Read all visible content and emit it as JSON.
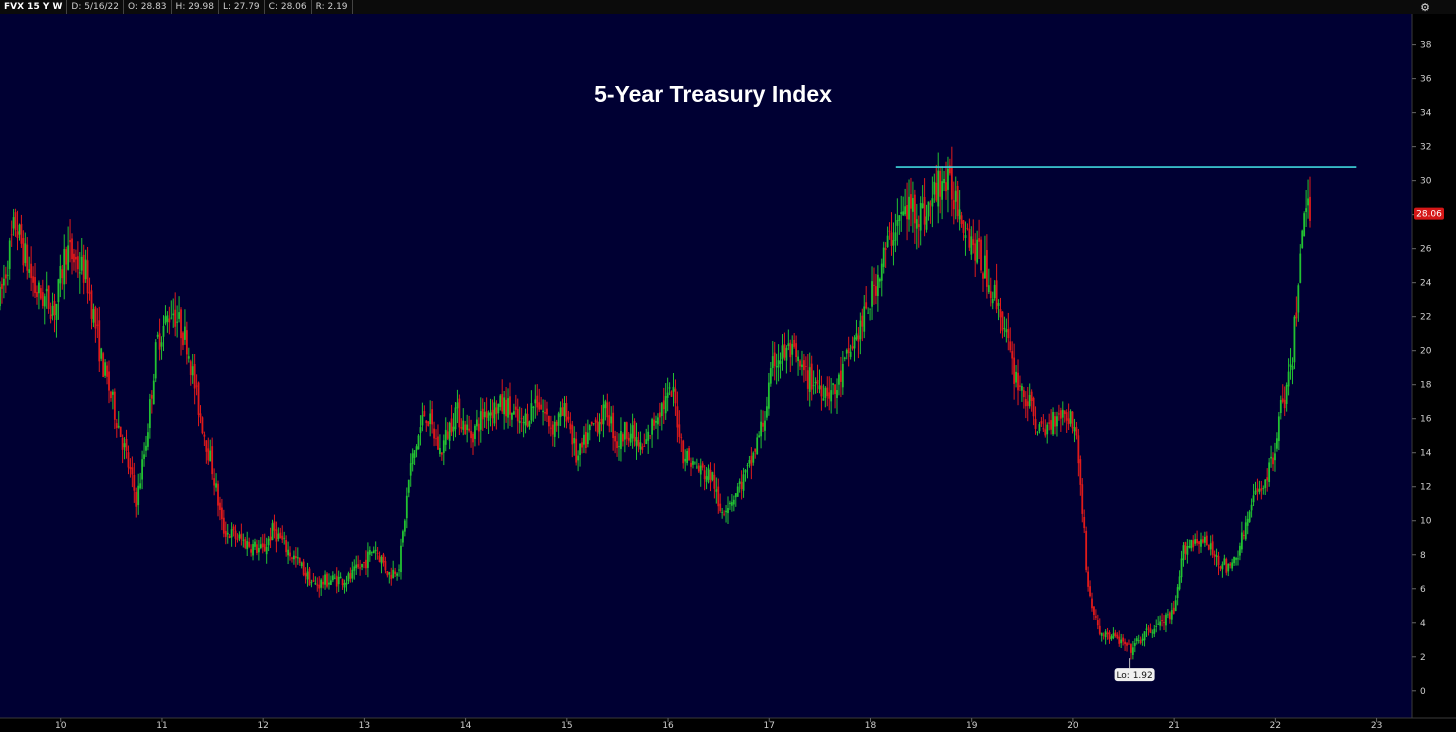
{
  "header": {
    "symbol": "FVX 15 Y W",
    "date": "D: 5/16/22",
    "open": "O: 28.83",
    "high": "H: 29.98",
    "low": "L: 27.79",
    "close": "C: 28.06",
    "range": "R: 2.19",
    "settings_icon": "gear-icon"
  },
  "colors": {
    "plot_bg": "#000033",
    "up": "#22c232",
    "down": "#e01a1a",
    "resistance": "#3fd6dc",
    "price_badge": "#d51717"
  },
  "chart_data": {
    "type": "candlestick",
    "title": "5-Year Treasury Index",
    "xlabel": "",
    "ylabel": "",
    "x_ticks": [
      "10",
      "11",
      "12",
      "13",
      "14",
      "15",
      "16",
      "17",
      "18",
      "19",
      "20",
      "21",
      "22",
      "23"
    ],
    "y_ticks": [
      "0",
      "2",
      "4",
      "6",
      "8",
      "10",
      "12",
      "14",
      "16",
      "18",
      "20",
      "22",
      "24",
      "26",
      "28",
      "30",
      "32",
      "34",
      "36",
      "38"
    ],
    "xlim": [
      2009.4,
      2023.35
    ],
    "ylim": [
      -1.6,
      39.8
    ],
    "last_price": "28.06",
    "low_label": "Lo: 1.92",
    "low_point": {
      "x": 2020.56,
      "y": 1.92
    },
    "resistance": {
      "x_start": 2018.25,
      "x_end": 2022.8,
      "y": 30.8
    },
    "price_path": [
      [
        2009.4,
        23
      ],
      [
        2009.55,
        27.5
      ],
      [
        2009.75,
        23.5
      ],
      [
        2009.95,
        22.5
      ],
      [
        2010.05,
        26
      ],
      [
        2010.25,
        24.5
      ],
      [
        2010.4,
        19.5
      ],
      [
        2010.6,
        15
      ],
      [
        2010.75,
        11.2
      ],
      [
        2010.85,
        15
      ],
      [
        2010.95,
        20.5
      ],
      [
        2011.1,
        22.5
      ],
      [
        2011.25,
        20.5
      ],
      [
        2011.35,
        17
      ],
      [
        2011.5,
        13
      ],
      [
        2011.6,
        9.5
      ],
      [
        2011.8,
        8.8
      ],
      [
        2012.0,
        8.2
      ],
      [
        2012.1,
        9.5
      ],
      [
        2012.25,
        8.2
      ],
      [
        2012.35,
        7.5
      ],
      [
        2012.5,
        6.2
      ],
      [
        2012.65,
        6.5
      ],
      [
        2012.85,
        6.6
      ],
      [
        2013.0,
        7.5
      ],
      [
        2013.1,
        8.5
      ],
      [
        2013.25,
        6.8
      ],
      [
        2013.35,
        7.5
      ],
      [
        2013.45,
        13
      ],
      [
        2013.6,
        16.5
      ],
      [
        2013.75,
        14
      ],
      [
        2013.9,
        16.5
      ],
      [
        2014.05,
        15
      ],
      [
        2014.2,
        16.5
      ],
      [
        2014.4,
        16.8
      ],
      [
        2014.55,
        15.5
      ],
      [
        2014.7,
        17.2
      ],
      [
        2014.85,
        15.5
      ],
      [
        2015.0,
        16.5
      ],
      [
        2015.1,
        13.5
      ],
      [
        2015.25,
        15.5
      ],
      [
        2015.4,
        16.5
      ],
      [
        2015.5,
        14.5
      ],
      [
        2015.6,
        15.5
      ],
      [
        2015.75,
        14
      ],
      [
        2015.9,
        16.5
      ],
      [
        2016.05,
        17.5
      ],
      [
        2016.15,
        14
      ],
      [
        2016.3,
        13
      ],
      [
        2016.45,
        12.5
      ],
      [
        2016.5,
        10.5
      ],
      [
        2016.65,
        11.5
      ],
      [
        2016.8,
        13
      ],
      [
        2016.95,
        16
      ],
      [
        2017.05,
        19.5
      ],
      [
        2017.2,
        20
      ],
      [
        2017.35,
        18.5
      ],
      [
        2017.5,
        18
      ],
      [
        2017.65,
        17.5
      ],
      [
        2017.8,
        20
      ],
      [
        2017.95,
        22
      ],
      [
        2018.1,
        25
      ],
      [
        2018.25,
        27.5
      ],
      [
        2018.4,
        28.5
      ],
      [
        2018.55,
        28
      ],
      [
        2018.7,
        30.2
      ],
      [
        2018.85,
        29
      ],
      [
        2019.0,
        26.5
      ],
      [
        2019.15,
        24.5
      ],
      [
        2019.3,
        22
      ],
      [
        2019.4,
        19
      ],
      [
        2019.55,
        17
      ],
      [
        2019.7,
        15
      ],
      [
        2019.85,
        16.5
      ],
      [
        2020.0,
        16
      ],
      [
        2020.05,
        14
      ],
      [
        2020.15,
        6
      ],
      [
        2020.25,
        3.5
      ],
      [
        2020.45,
        3
      ],
      [
        2020.56,
        2.4
      ],
      [
        2020.75,
        3.5
      ],
      [
        2021.0,
        4.5
      ],
      [
        2021.1,
        8.5
      ],
      [
        2021.25,
        9
      ],
      [
        2021.4,
        8
      ],
      [
        2021.55,
        7
      ],
      [
        2021.65,
        8.5
      ],
      [
        2021.8,
        11.5
      ],
      [
        2021.95,
        13
      ],
      [
        2022.05,
        16.5
      ],
      [
        2022.15,
        18.5
      ],
      [
        2022.2,
        22
      ],
      [
        2022.25,
        26
      ],
      [
        2022.32,
        29.5
      ],
      [
        2022.35,
        28.06
      ]
    ]
  }
}
